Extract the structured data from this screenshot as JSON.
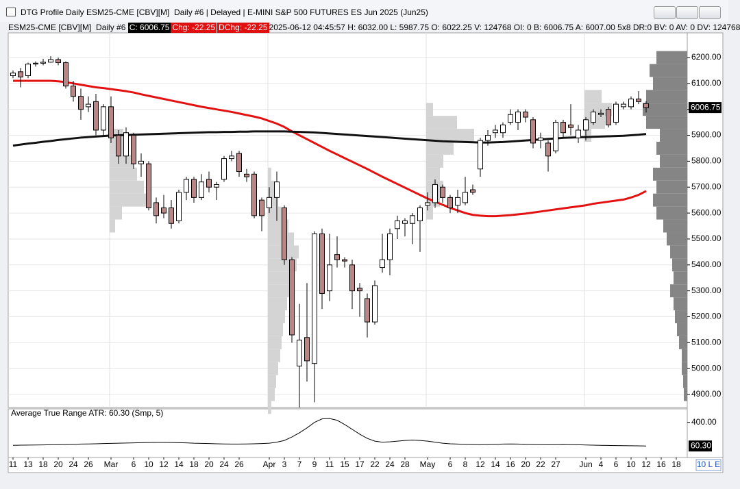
{
  "window": {
    "title": "DTG Profile Daily ESM25-CME [CBV][M]  Daily #6 | Delayed | E-MINI S&P 500 FUTURES ES Jun 2025 (Jun25)"
  },
  "info_bar": {
    "symbol": "ESM25-CME [CBV][M]  Daily #6 ",
    "close": "C: 6006.75",
    "change": "Chg: -22.25",
    "dchange": "DChg: -22.25",
    "details": "2025-06-12 04:45:57 H: 6032.00 L: 5987.75 O: 6022.25 V: 124768 OI: 0 B: 6006.75 A: 6007.00 5x8 DR:0 BV: 0 AV: 0 DV: 124768"
  },
  "chart_data": {
    "type": "candlestick",
    "categories": [
      "11",
      null,
      "13",
      null,
      "18",
      null,
      "20",
      null,
      "24",
      null,
      "26",
      null,
      null,
      "Mar",
      null,
      null,
      "6",
      null,
      "10",
      null,
      "12",
      null,
      "14",
      null,
      "18",
      null,
      "20",
      null,
      "24",
      null,
      "26",
      null,
      null,
      null,
      "Apr",
      null,
      "3",
      null,
      "7",
      null,
      "9",
      null,
      "11",
      null,
      "15",
      null,
      "17",
      null,
      "22",
      null,
      "24",
      null,
      "28",
      null,
      null,
      "May",
      null,
      null,
      "6",
      null,
      "8",
      null,
      "12",
      null,
      "14",
      null,
      "16",
      null,
      "20",
      null,
      "22",
      null,
      "27",
      null,
      null,
      null,
      "Jun",
      null,
      "4",
      null,
      "6",
      null,
      "10",
      null,
      "12",
      null,
      "16",
      null,
      "18"
    ],
    "open": [
      6130,
      6145,
      6130,
      6175,
      6178,
      6182,
      6192,
      6180,
      6090,
      6050,
      6010,
      6030,
      5920,
      6010,
      5900,
      5820,
      5900,
      5790,
      5790,
      5640,
      5620,
      5620,
      5570,
      5680,
      5730,
      5660,
      5730,
      5700,
      5730,
      5810,
      5830,
      5750,
      5750,
      5650,
      5620,
      5660,
      5620,
      5420,
      5010,
      5120,
      5020,
      5520,
      5300,
      5440,
      5420,
      5400,
      5310,
      5270,
      5180,
      5390,
      5420,
      5540,
      5560,
      5560,
      5570,
      5630,
      5640,
      5700,
      5660,
      5630,
      5640,
      5690,
      5770,
      5880,
      5910,
      5910,
      5950,
      5950,
      5990,
      5960,
      5880,
      5870,
      5840,
      5950,
      5940,
      5890,
      5920,
      5950,
      5980,
      6000,
      5950,
      6010,
      6010,
      6040,
      6022.25,
      null,
      null,
      null,
      null
    ],
    "high": [
      6150,
      6160,
      6180,
      6185,
      6195,
      6205,
      6200,
      6185,
      6110,
      6080,
      6050,
      6060,
      6020,
      6050,
      5920,
      5930,
      5910,
      5830,
      5800,
      5660,
      5670,
      5650,
      5690,
      5740,
      5740,
      5750,
      5760,
      5720,
      5820,
      5840,
      5840,
      5770,
      5760,
      5660,
      5700,
      5760,
      5630,
      5430,
      5250,
      5330,
      5530,
      5540,
      5520,
      5510,
      5430,
      5420,
      5330,
      5290,
      5340,
      5520,
      5540,
      5590,
      5580,
      5600,
      5630,
      5680,
      5730,
      5710,
      5670,
      5690,
      5740,
      5710,
      5890,
      5920,
      5940,
      5950,
      6000,
      6000,
      6000,
      5970,
      5910,
      5880,
      5960,
      5960,
      6020,
      5940,
      5970,
      6000,
      6000,
      6010,
      6030,
      6030,
      6050,
      6070,
      6032,
      null,
      null,
      null,
      null
    ],
    "low": [
      6120,
      6085,
      6120,
      6165,
      6170,
      6180,
      6170,
      6080,
      6030,
      5960,
      5990,
      5900,
      5900,
      5870,
      5790,
      5790,
      5770,
      5740,
      5610,
      5560,
      5580,
      5540,
      5560,
      5650,
      5640,
      5650,
      5680,
      5650,
      5720,
      5800,
      5740,
      5720,
      5580,
      5530,
      5600,
      5570,
      5400,
      5100,
      4850,
      4950,
      4870,
      5230,
      5260,
      5390,
      5390,
      5230,
      5200,
      5120,
      5170,
      5370,
      5360,
      5500,
      5510,
      5480,
      5450,
      5610,
      5620,
      5640,
      5600,
      5600,
      5630,
      5670,
      5740,
      5860,
      5890,
      5890,
      5940,
      5920,
      5950,
      5850,
      5850,
      5760,
      5830,
      5890,
      5900,
      5870,
      5880,
      5940,
      5970,
      5930,
      5940,
      6000,
      6000,
      6020,
      5987.75,
      null,
      null,
      null,
      null
    ],
    "close": [
      6140,
      6125,
      6175,
      6178,
      6182,
      6192,
      6180,
      6090,
      6050,
      6000,
      6020,
      5920,
      6010,
      5890,
      5820,
      5910,
      5790,
      5800,
      5620,
      5590,
      5600,
      5560,
      5680,
      5730,
      5660,
      5720,
      5700,
      5710,
      5810,
      5820,
      5760,
      5740,
      5590,
      5590,
      5660,
      5720,
      5420,
      5130,
      5110,
      5030,
      5520,
      5290,
      5400,
      5420,
      5415,
      5300,
      5300,
      5180,
      5320,
      5420,
      5520,
      5570,
      5570,
      5590,
      5620,
      5640,
      5710,
      5660,
      5620,
      5660,
      5680,
      5680,
      5880,
      5900,
      5920,
      5940,
      5980,
      5990,
      5970,
      5870,
      5890,
      5820,
      5950,
      5910,
      5930,
      5920,
      5960,
      5990,
      5985,
      5940,
      6020,
      6020,
      6040,
      6030,
      6006.75,
      null,
      null,
      null,
      null
    ],
    "up_color": "#ffffff",
    "down_color": "#b98686",
    "moving_averages": [
      {
        "color": "#e41111",
        "values": [
          6110,
          6110,
          6110,
          6110,
          6110,
          6110,
          6108,
          6105,
          6100,
          6095,
          6090,
          6085,
          6082,
          6078,
          6074,
          6070,
          6065,
          6058,
          6052,
          6046,
          6040,
          6034,
          6028,
          6022,
          6016,
          6010,
          6005,
          6000,
          5995,
          5990,
          5984,
          5978,
          5972,
          5965,
          5955,
          5945,
          5932,
          5915,
          5900,
          5885,
          5870,
          5855,
          5840,
          5826,
          5812,
          5798,
          5784,
          5770,
          5755,
          5740,
          5726,
          5712,
          5698,
          5684,
          5670,
          5656,
          5644,
          5632,
          5620,
          5610,
          5600,
          5593,
          5590,
          5588,
          5588,
          5590,
          5592,
          5595,
          5598,
          5602,
          5606,
          5610,
          5614,
          5618,
          5622,
          5626,
          5630,
          5636,
          5640,
          5644,
          5648,
          5652,
          5660,
          5670,
          5685,
          null,
          null,
          null,
          null
        ]
      },
      {
        "color": "#111111",
        "values": [
          5860,
          5864,
          5868,
          5871,
          5875,
          5878,
          5882,
          5885,
          5888,
          5891,
          5893,
          5895,
          5897,
          5899,
          5900,
          5901,
          5902,
          5903,
          5904,
          5905,
          5906,
          5907,
          5908,
          5909,
          5910,
          5911,
          5912,
          5912,
          5913,
          5913,
          5914,
          5914,
          5915,
          5915,
          5915,
          5915,
          5915,
          5914,
          5913,
          5912,
          5911,
          5909,
          5907,
          5905,
          5903,
          5901,
          5899,
          5897,
          5895,
          5893,
          5891,
          5889,
          5887,
          5885,
          5883,
          5881,
          5879,
          5877,
          5876,
          5875,
          5874,
          5873,
          5872,
          5872,
          5873,
          5874,
          5876,
          5878,
          5880,
          5882,
          5884,
          5886,
          5888,
          5890,
          5891,
          5892,
          5893,
          5894,
          5895,
          5896,
          5897,
          5898,
          5900,
          5902,
          5905,
          null,
          null,
          null,
          null
        ]
      }
    ],
    "ylim": [
      4850,
      6295
    ],
    "yticks": [
      {
        "value": 4900,
        "label": "4900.00"
      },
      {
        "value": 5000,
        "label": "5000.00"
      },
      {
        "value": 5100,
        "label": "5100.00"
      },
      {
        "value": 5200,
        "label": "5200.00"
      },
      {
        "value": 5300,
        "label": "5300.00"
      },
      {
        "value": 5400,
        "label": "5400.00"
      },
      {
        "value": 5500,
        "label": "5500.00"
      },
      {
        "value": 5600,
        "label": "5600.00"
      },
      {
        "value": 5700,
        "label": "5700.00"
      },
      {
        "value": 5800,
        "label": "5800.00"
      },
      {
        "value": 5900,
        "label": "5900.00"
      },
      {
        "value": 6000,
        "label": "6000.00"
      },
      {
        "value": 6100,
        "label": "6100.00"
      },
      {
        "value": 6200,
        "label": "6200.00"
      }
    ],
    "grid": true,
    "last_price_label": "6006.75",
    "profiles": [
      {
        "month": "Mar",
        "color": "#d4d4d4",
        "prices": [
          5550,
          5600,
          5650,
          5700,
          5750,
          5800,
          5850,
          5900,
          5950
        ],
        "volumes": [
          8,
          18,
          55,
          50,
          40,
          35,
          25,
          20,
          6
        ]
      },
      {
        "month": "Apr",
        "color": "#d4d4d4",
        "prices": [
          4850,
          4900,
          4950,
          5000,
          5050,
          5100,
          5150,
          5200,
          5250,
          5300,
          5350,
          5400,
          5450,
          5500,
          5550,
          5600,
          5650,
          5700,
          5750
        ],
        "volumes": [
          5,
          10,
          12,
          15,
          18,
          20,
          22,
          25,
          28,
          32,
          38,
          42,
          45,
          38,
          30,
          20,
          15,
          10,
          5
        ]
      },
      {
        "month": "May",
        "color": "#d4d4d4",
        "prices": [
          5600,
          5650,
          5700,
          5750,
          5800,
          5850,
          5900,
          5950,
          6000
        ],
        "volumes": [
          10,
          20,
          25,
          20,
          25,
          40,
          70,
          45,
          10
        ]
      },
      {
        "month": "Jun",
        "color": "#d4d4d4",
        "prices": [
          5900,
          5950,
          6000,
          6050
        ],
        "volumes": [
          10,
          30,
          40,
          25
        ]
      }
    ],
    "composite_profile": {
      "color": "#858585",
      "prices": [
        4900,
        4950,
        5000,
        5050,
        5100,
        5150,
        5200,
        5250,
        5300,
        5350,
        5400,
        5450,
        5500,
        5550,
        5600,
        5650,
        5700,
        5750,
        5800,
        5850,
        5900,
        5950,
        6000,
        6050,
        6100,
        6150,
        6200
      ],
      "volumes": [
        5,
        6,
        8,
        8,
        12,
        15,
        18,
        20,
        25,
        20,
        22,
        25,
        30,
        35,
        45,
        50,
        45,
        50,
        40,
        45,
        40,
        60,
        65,
        60,
        50,
        55,
        45
      ]
    },
    "atr": {
      "label": "Average True Range  ATR: 60.30   (Smp, 5)",
      "color": "#000000",
      "values": [
        70,
        72,
        74,
        75,
        76,
        78,
        80,
        82,
        85,
        88,
        90,
        92,
        95,
        98,
        100,
        103,
        106,
        108,
        110,
        112,
        112,
        110,
        108,
        105,
        100,
        98,
        95,
        92,
        90,
        88,
        88,
        90,
        92,
        95,
        100,
        115,
        140,
        190,
        250,
        320,
        400,
        450,
        455,
        430,
        370,
        300,
        230,
        170,
        130,
        115,
        120,
        130,
        140,
        145,
        140,
        130,
        115,
        100,
        92,
        88,
        85,
        82,
        80,
        82,
        85,
        88,
        90,
        88,
        85,
        82,
        80,
        78,
        80,
        82,
        80,
        78,
        75,
        72,
        70,
        68,
        66,
        65,
        64,
        62,
        60.3,
        null,
        null,
        null,
        null
      ],
      "ylim": [
        -105,
        594
      ],
      "yticks": [
        {
          "value": 400,
          "label": "400.00"
        }
      ],
      "last_label": "60.30"
    },
    "corner_label": "10 L E"
  }
}
